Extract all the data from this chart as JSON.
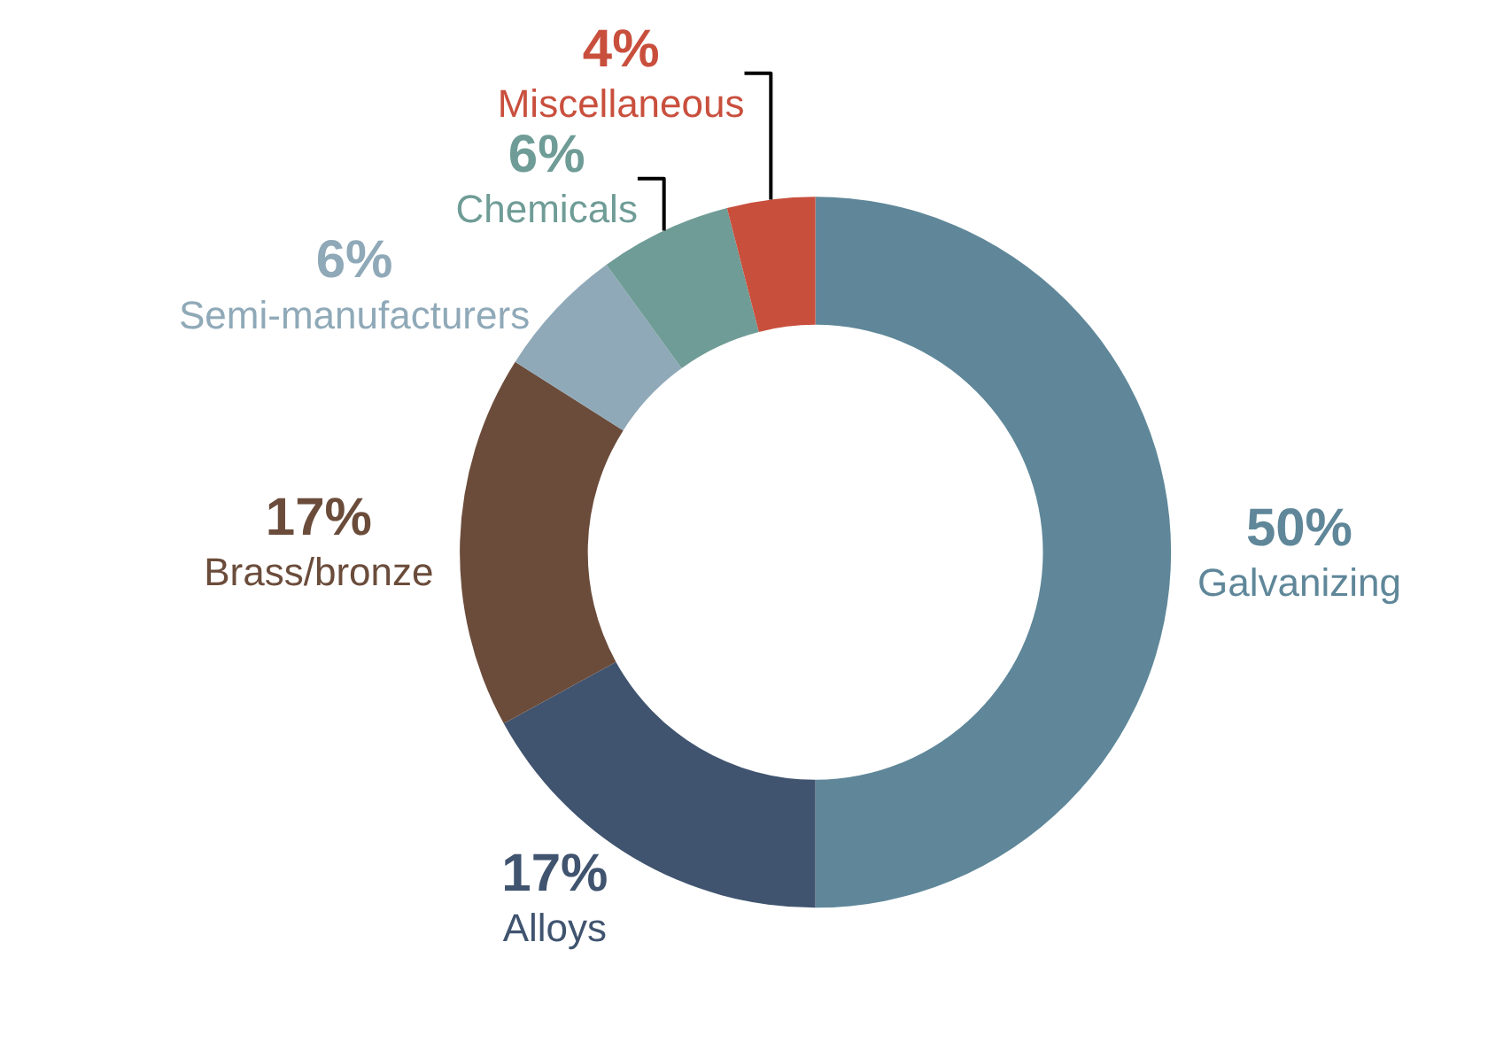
{
  "chart_data": {
    "type": "donut",
    "categories": [
      "Galvanizing",
      "Alloys",
      "Brass/bronze",
      "Semi-manufacturers",
      "Chemicals",
      "Miscellaneous"
    ],
    "values": [
      50,
      17,
      17,
      6,
      6,
      4
    ],
    "value_labels": [
      "50%",
      "17%",
      "17%",
      "6%",
      "6%",
      "4%"
    ],
    "colors": [
      "#5f8799",
      "#40546f",
      "#6b4c3b",
      "#8fa9b8",
      "#6f9c96",
      "#c94f3d"
    ],
    "legend": false
  }
}
